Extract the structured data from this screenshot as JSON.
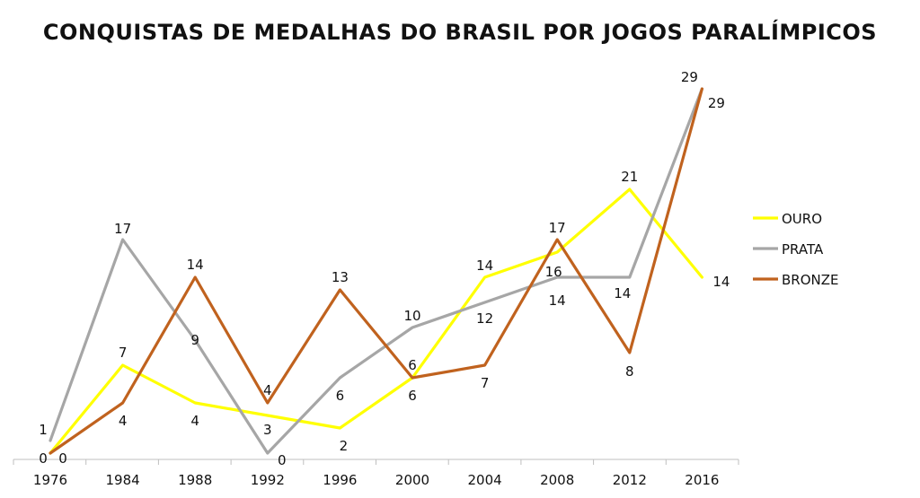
{
  "chart_data": {
    "type": "line",
    "title": "CONQUISTAS DE MEDALHAS DO BRASIL POR JOGOS PARALÍMPICOS",
    "xlabel": "",
    "ylabel": "",
    "ylim": [
      0,
      29
    ],
    "grid": false,
    "legend_position": "right",
    "categories": [
      "1976",
      "1984",
      "1988",
      "1992",
      "1996",
      "2000",
      "2004",
      "2008",
      "2012",
      "2016"
    ],
    "series": [
      {
        "name": "OURO",
        "color": "#FFFF00",
        "values": [
          0,
          7,
          4,
          3,
          2,
          6,
          14,
          16,
          21,
          14
        ]
      },
      {
        "name": "PRATA",
        "color": "#A6A6A6",
        "values": [
          1,
          17,
          9,
          0,
          6,
          10,
          12,
          14,
          14,
          29
        ]
      },
      {
        "name": "BRONZE",
        "color": "#C0621E",
        "values": [
          0,
          4,
          14,
          4,
          13,
          6,
          7,
          17,
          8,
          29
        ]
      }
    ]
  }
}
